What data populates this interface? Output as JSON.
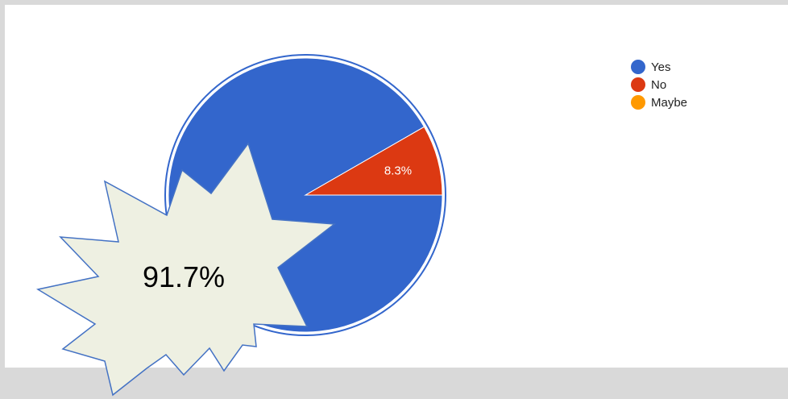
{
  "chart_data": {
    "type": "pie",
    "categories": [
      "Yes",
      "No",
      "Maybe"
    ],
    "values": [
      91.7,
      8.3,
      0
    ],
    "colors": [
      "#3366cc",
      "#dc3912",
      "#ff9900"
    ],
    "slice_labels": [
      "",
      "8.3%",
      ""
    ],
    "legend": "right",
    "title": ""
  },
  "callout": {
    "text": "91.7%",
    "shape": "starburst",
    "fill": "#eef0e2",
    "stroke": "#4472c4"
  }
}
